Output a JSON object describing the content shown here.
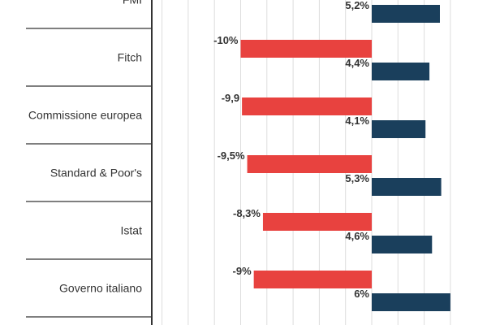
{
  "chart_data": {
    "type": "bar",
    "orientation": "horizontal",
    "categories": [
      "FMI",
      "Fitch",
      "Commissione europea",
      "Standard & Poor's",
      "Istat",
      "Governo italiano"
    ],
    "series": [
      {
        "color": "#e8423f",
        "values": [
          null,
          -10,
          -9.9,
          -9.5,
          -8.3,
          -9
        ],
        "labels": [
          "",
          "-10%",
          "-9,9",
          "-9,5%",
          "-8,3%",
          "-9%"
        ]
      },
      {
        "color": "#1a3f5c",
        "values": [
          5.2,
          4.4,
          4.1,
          5.3,
          4.6,
          6
        ],
        "labels": [
          "5,2%",
          "4,4%",
          "4,1%",
          "5,3%",
          "4,6%",
          "6%"
        ]
      }
    ],
    "xlim": [
      -16,
      6.8
    ],
    "grid": true,
    "legend": "none"
  }
}
